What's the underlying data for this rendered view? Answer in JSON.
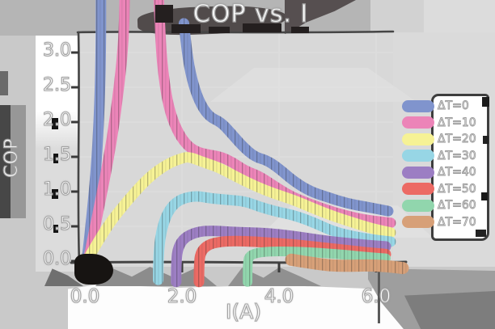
{
  "title": "COP vs. I",
  "axes": {
    "x": {
      "label": "I(A)",
      "ticks": [
        "0.0",
        "2.0",
        "4.0",
        "6.0"
      ]
    },
    "y": {
      "label": "COP",
      "ticks": [
        "3.0",
        "2.5",
        "2.0",
        "1.5",
        "1.0",
        "0.5",
        "0.0"
      ]
    }
  },
  "legend": {
    "position": "right",
    "items": [
      {
        "label": "ΔT=0",
        "color": "#8094cd"
      },
      {
        "label": "ΔT=10",
        "color": "#ec84b8"
      },
      {
        "label": "ΔT=20",
        "color": "#f6f295"
      },
      {
        "label": "ΔT=30",
        "color": "#97d6e5"
      },
      {
        "label": "ΔT=40",
        "color": "#9c7ec3"
      },
      {
        "label": "ΔT=50",
        "color": "#ec6a64"
      },
      {
        "label": "ΔT=60",
        "color": "#91d6ad"
      },
      {
        "label": "ΔT=70",
        "color": "#d7a078"
      }
    ]
  },
  "chart_data": {
    "type": "line",
    "title": "COP vs. I",
    "xlabel": "I(A)",
    "ylabel": "COP",
    "xlim": [
      0,
      6.3
    ],
    "ylim": [
      0,
      3.3
    ],
    "x_ticks": [
      0.0,
      2.0,
      4.0,
      6.0
    ],
    "y_ticks": [
      0.0,
      0.5,
      1.0,
      1.5,
      2.0,
      2.5,
      3.0
    ],
    "grid": false,
    "legend_position": "center right",
    "style": "xkcd hand-drawn, very thick pastel strokes, curves for ΔT=0 and ΔT=10 clipped at top of axes",
    "series": [
      {
        "name": "ΔT=0",
        "color": "#8094cd",
        "width": 13,
        "segments": [
          [
            [
              0.03,
              -0.05
            ],
            [
              0.15,
              0.7
            ],
            [
              0.25,
              1.5
            ],
            [
              0.31,
              2.4
            ],
            [
              0.33,
              3.2
            ],
            [
              0.33,
              3.8
            ]
          ],
          [
            [
              2.04,
              3.42
            ],
            [
              2.1,
              3.0
            ],
            [
              2.2,
              2.62
            ],
            [
              2.35,
              2.3
            ],
            [
              2.55,
              2.08
            ],
            [
              2.8,
              2.0
            ],
            [
              3.0,
              1.85
            ],
            [
              3.25,
              1.65
            ],
            [
              3.5,
              1.5
            ],
            [
              3.75,
              1.45
            ],
            [
              4.0,
              1.33
            ],
            [
              4.3,
              1.15
            ],
            [
              4.65,
              1.0
            ],
            [
              5.0,
              0.92
            ],
            [
              5.4,
              0.83
            ],
            [
              5.8,
              0.78
            ],
            [
              6.25,
              0.72
            ]
          ]
        ]
      },
      {
        "name": "ΔT=10",
        "color": "#ec84b8",
        "width": 13,
        "segments": [
          [
            [
              0.05,
              -0.05
            ],
            [
              0.3,
              0.8
            ],
            [
              0.55,
              1.7
            ],
            [
              0.72,
              2.6
            ],
            [
              0.8,
              3.2
            ],
            [
              0.82,
              3.8
            ]
          ],
          [
            [
              1.52,
              3.8
            ],
            [
              1.56,
              3.1
            ],
            [
              1.63,
              2.6
            ],
            [
              1.73,
              2.2
            ],
            [
              1.88,
              1.9
            ],
            [
              2.08,
              1.68
            ],
            [
              2.3,
              1.57
            ],
            [
              2.55,
              1.53
            ],
            [
              2.8,
              1.5
            ],
            [
              3.05,
              1.42
            ],
            [
              3.3,
              1.3
            ],
            [
              3.6,
              1.22
            ],
            [
              3.9,
              1.08
            ],
            [
              4.25,
              0.93
            ],
            [
              4.6,
              0.83
            ],
            [
              5.0,
              0.73
            ],
            [
              5.4,
              0.65
            ],
            [
              5.8,
              0.59
            ],
            [
              6.3,
              0.55
            ]
          ]
        ]
      },
      {
        "name": "ΔT=20",
        "color": "#f6f295",
        "width": 13,
        "segments": [
          [
            [
              0.04,
              0.0
            ],
            [
              0.4,
              0.45
            ],
            [
              0.85,
              0.85
            ],
            [
              1.3,
              1.2
            ],
            [
              1.7,
              1.4
            ],
            [
              2.0,
              1.48
            ],
            [
              2.15,
              1.5
            ],
            [
              2.45,
              1.42
            ],
            [
              2.75,
              1.35
            ],
            [
              3.1,
              1.22
            ],
            [
              3.5,
              1.08
            ],
            [
              3.9,
              0.97
            ],
            [
              4.3,
              0.88
            ],
            [
              4.7,
              0.76
            ],
            [
              5.1,
              0.65
            ],
            [
              5.5,
              0.56
            ],
            [
              5.9,
              0.47
            ],
            [
              6.3,
              0.41
            ]
          ]
        ]
      },
      {
        "name": "ΔT=30",
        "color": "#97d6e5",
        "width": 13,
        "segments": [
          [
            [
              1.51,
              -0.27
            ],
            [
              1.51,
              0.0
            ],
            [
              1.55,
              0.35
            ],
            [
              1.65,
              0.62
            ],
            [
              1.8,
              0.8
            ],
            [
              2.0,
              0.9
            ],
            [
              2.3,
              0.94
            ],
            [
              2.6,
              0.9
            ],
            [
              2.95,
              0.88
            ],
            [
              3.3,
              0.86
            ],
            [
              3.6,
              0.78
            ],
            [
              3.95,
              0.71
            ],
            [
              4.3,
              0.66
            ],
            [
              4.7,
              0.56
            ],
            [
              5.1,
              0.43
            ],
            [
              5.5,
              0.36
            ],
            [
              5.9,
              0.31
            ],
            [
              6.3,
              0.28
            ]
          ]
        ]
      },
      {
        "name": "ΔT=40",
        "color": "#9c7ec3",
        "width": 13,
        "segments": [
          [
            [
              1.88,
              -0.3
            ],
            [
              1.88,
              0.0
            ],
            [
              1.92,
              0.2
            ],
            [
              2.05,
              0.34
            ],
            [
              2.3,
              0.42
            ],
            [
              2.6,
              0.44
            ],
            [
              3.0,
              0.42
            ],
            [
              3.4,
              0.41
            ],
            [
              3.8,
              0.4
            ],
            [
              4.2,
              0.37
            ],
            [
              4.6,
              0.33
            ],
            [
              5.0,
              0.29
            ],
            [
              5.4,
              0.26
            ],
            [
              5.8,
              0.23
            ],
            [
              6.2,
              0.21
            ]
          ]
        ]
      },
      {
        "name": "ΔT=50",
        "color": "#ec6a64",
        "width": 13,
        "segments": [
          [
            [
              2.35,
              -0.3
            ],
            [
              2.35,
              0.0
            ],
            [
              2.4,
              0.15
            ],
            [
              2.55,
              0.24
            ],
            [
              2.8,
              0.28
            ],
            [
              3.1,
              0.29
            ],
            [
              3.5,
              0.28
            ],
            [
              3.9,
              0.26
            ],
            [
              4.3,
              0.24
            ],
            [
              4.7,
              0.21
            ],
            [
              5.1,
              0.18
            ],
            [
              5.5,
              0.15
            ],
            [
              5.9,
              0.12
            ],
            [
              6.2,
              0.1
            ]
          ]
        ]
      },
      {
        "name": "ΔT=60",
        "color": "#91d6ad",
        "width": 12,
        "segments": [
          [
            [
              3.35,
              -0.3
            ],
            [
              3.35,
              0.0
            ],
            [
              3.4,
              0.08
            ],
            [
              3.55,
              0.12
            ],
            [
              3.8,
              0.14
            ],
            [
              4.2,
              0.14
            ],
            [
              4.6,
              0.13
            ],
            [
              5.0,
              0.11
            ],
            [
              5.4,
              0.09
            ],
            [
              5.8,
              0.06
            ],
            [
              6.2,
              0.04
            ]
          ]
        ]
      },
      {
        "name": "ΔT=70",
        "color": "#d7a078",
        "width": 15,
        "segments": [
          [
            [
              4.25,
              0.02
            ],
            [
              4.6,
              -0.02
            ],
            [
              5.0,
              -0.06
            ],
            [
              5.4,
              -0.07
            ],
            [
              5.8,
              -0.06
            ],
            [
              6.2,
              -0.07
            ],
            [
              6.55,
              -0.1
            ]
          ]
        ]
      }
    ]
  }
}
